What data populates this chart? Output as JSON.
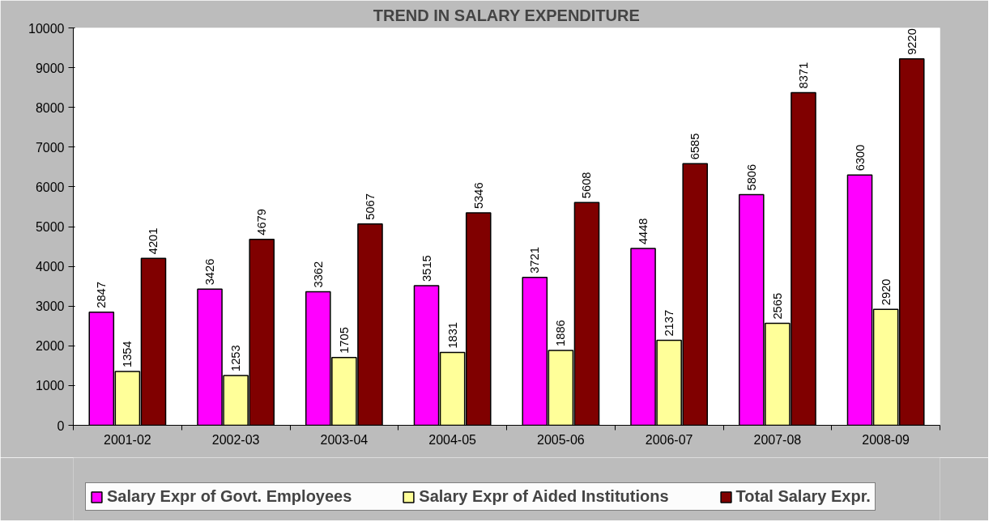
{
  "chart_data": {
    "type": "bar",
    "title": "TREND IN SALARY EXPENDITURE",
    "categories": [
      "2001-02",
      "2002-03",
      "2003-04",
      "2004-05",
      "2005-06",
      "2006-07",
      "2007-08",
      "2008-09"
    ],
    "series": [
      {
        "name": "Salary Expr of Govt. Employees",
        "color": "#ff00ff",
        "values": [
          2847,
          3426,
          3362,
          3515,
          3721,
          4448,
          5806,
          6300
        ]
      },
      {
        "name": "Salary Expr of Aided Institutions",
        "color": "#ffff99",
        "values": [
          1354,
          1253,
          1705,
          1831,
          1886,
          2137,
          2565,
          2920
        ]
      },
      {
        "name": "Total Salary Expr.",
        "color": "#800000",
        "values": [
          4201,
          4679,
          5067,
          5346,
          5608,
          6585,
          8371,
          9220
        ]
      }
    ],
    "ylim": [
      0,
      10000
    ],
    "yticks": [
      0,
      1000,
      2000,
      3000,
      4000,
      5000,
      6000,
      7000,
      8000,
      9000,
      10000
    ],
    "legend": "bottom",
    "data_labels": true
  }
}
